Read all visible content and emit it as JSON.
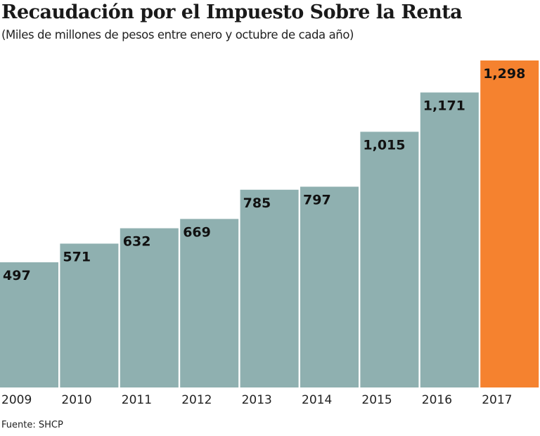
{
  "chart_data": {
    "type": "bar",
    "title": "Recaudación por el Impuesto Sobre la Renta",
    "subtitle": "(Miles de millones de pesos entre enero y octubre de cada año)",
    "source": "Fuente: SHCP",
    "categories": [
      "2009",
      "2010",
      "2011",
      "2012",
      "2013",
      "2014",
      "2015",
      "2016",
      "2017"
    ],
    "values": [
      497,
      571,
      632,
      669,
      785,
      797,
      1015,
      1171,
      1298
    ],
    "value_labels": [
      "497",
      "571",
      "632",
      "669",
      "785",
      "797",
      "1,015",
      "1,171",
      "1,298"
    ],
    "ylim": [
      0,
      1298
    ],
    "grid": false,
    "colors": {
      "default": "#8fb0b0",
      "highlight": "#f5822f"
    },
    "highlight_index": 8
  }
}
